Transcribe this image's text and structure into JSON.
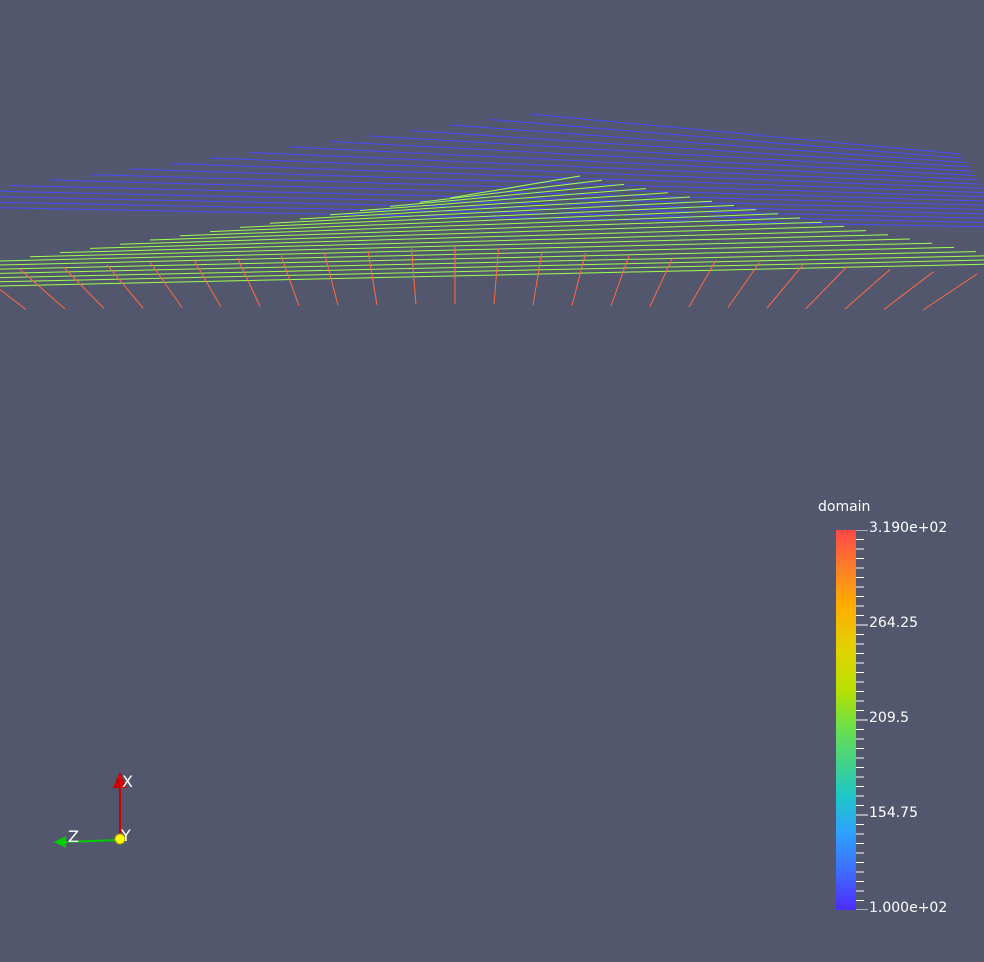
{
  "scene": {
    "upper_color": "#4b49ff",
    "middle_color": "#9eff4f",
    "lower_color": "#ff6a40",
    "background": "#52576e"
  },
  "legend": {
    "title": "domain",
    "max_label": "3.190e+02",
    "tick_264": "264.25",
    "tick_209": "209.5",
    "tick_154": "154.75",
    "min_label": "1.000e+02"
  },
  "orientation": {
    "x_label": "X",
    "y_label": "Y",
    "z_label": "Z",
    "x_color": "#cc0000",
    "y_color": "#ffff00",
    "z_color": "#00cc00"
  }
}
